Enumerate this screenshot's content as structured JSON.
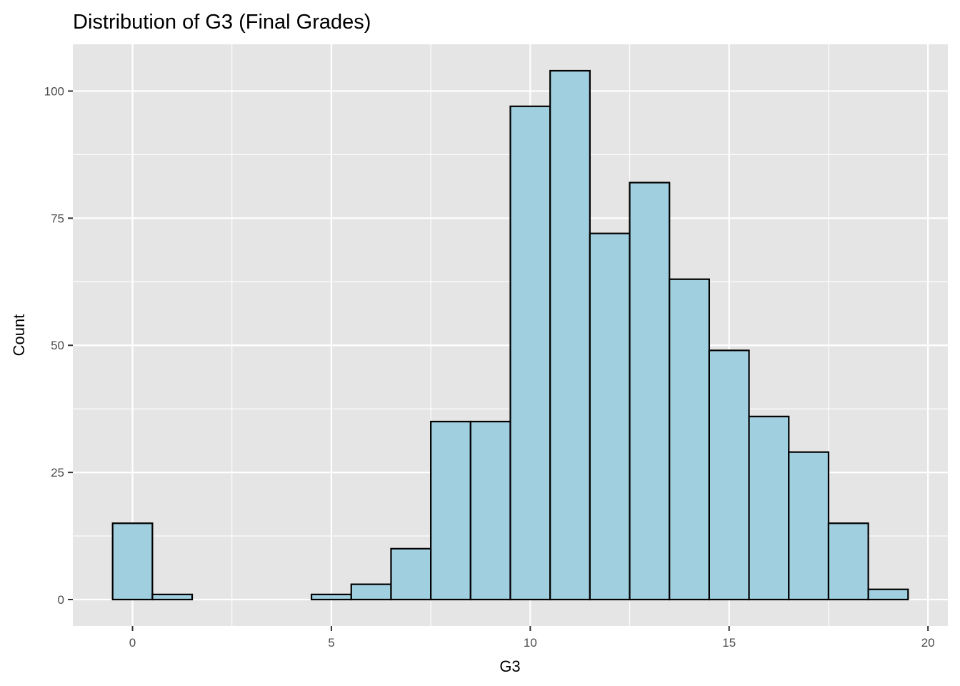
{
  "chart_data": {
    "type": "bar",
    "subtype": "histogram",
    "title": "Distribution of G3 (Final Grades)",
    "xlabel": "G3",
    "ylabel": "Count",
    "binwidth": 1,
    "bin_centers": [
      0,
      1,
      2,
      3,
      4,
      5,
      6,
      7,
      8,
      9,
      10,
      11,
      12,
      13,
      14,
      15,
      16,
      17,
      18,
      19
    ],
    "values": [
      15,
      1,
      0,
      0,
      0,
      1,
      3,
      10,
      35,
      35,
      97,
      104,
      72,
      82,
      63,
      49,
      36,
      29,
      15,
      2
    ],
    "xlim": [
      -1.5,
      20.5
    ],
    "ylim": [
      -5.2,
      109.2
    ],
    "x_ticks": [
      0,
      5,
      10,
      15,
      20
    ],
    "x_tick_labels": [
      "0",
      "5",
      "10",
      "15",
      "20"
    ],
    "y_ticks": [
      0,
      25,
      50,
      75,
      100
    ],
    "y_tick_labels": [
      "0",
      "25",
      "50",
      "75",
      "100"
    ],
    "grid": true,
    "legend": "none",
    "colors": {
      "bar_fill": "#a0cfe0",
      "bar_outline": "#000000",
      "panel_background": "#e5e5e5",
      "grid": "#ffffff"
    }
  }
}
